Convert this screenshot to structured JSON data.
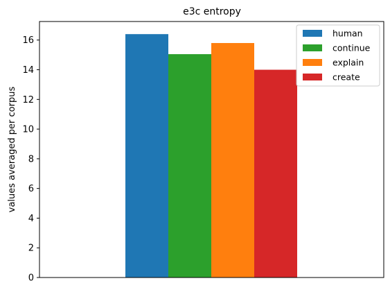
{
  "chart_data": {
    "type": "bar",
    "title": "e3c entropy",
    "xlabel": "",
    "ylabel": "values averaged per corpus",
    "ylim": [
      0,
      17.25
    ],
    "yticks": [
      0,
      2,
      4,
      6,
      8,
      10,
      12,
      14,
      16
    ],
    "grid": false,
    "legend_position": "top-right",
    "series": [
      {
        "name": "human",
        "value": 16.4,
        "color": "#1f77b4"
      },
      {
        "name": "continue",
        "value": 15.05,
        "color": "#2ca02c"
      },
      {
        "name": "explain",
        "value": 15.8,
        "color": "#ff7f0e"
      },
      {
        "name": "create",
        "value": 14.0,
        "color": "#d62728"
      }
    ]
  }
}
